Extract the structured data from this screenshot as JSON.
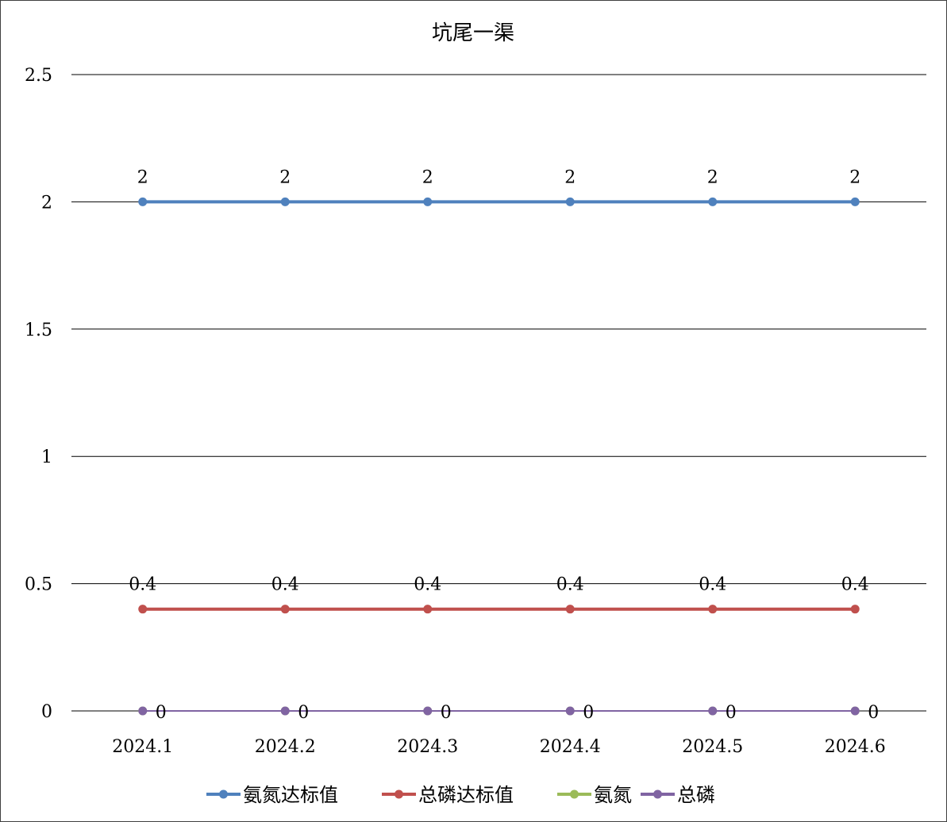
{
  "chart_data": {
    "type": "line",
    "title": "坑尾一渠",
    "categories": [
      "2024.1",
      "2024.2",
      "2024.3",
      "2024.4",
      "2024.5",
      "2024.6"
    ],
    "y_tick_labels": [
      "0",
      "0.5",
      "1",
      "1.5",
      "2",
      "2.5"
    ],
    "ylim": [
      0,
      2.5
    ],
    "grid": true,
    "legend_position": "bottom",
    "series": [
      {
        "name": "氨氮达标值",
        "values": [
          2,
          2,
          2,
          2,
          2,
          2
        ],
        "color": "#4F81BD",
        "data_labels": [
          "2",
          "2",
          "2",
          "2",
          "2",
          "2"
        ]
      },
      {
        "name": "总磷达标值",
        "values": [
          0.4,
          0.4,
          0.4,
          0.4,
          0.4,
          0.4
        ],
        "color": "#C0504D",
        "data_labels": [
          "0.4",
          "0.4",
          "0.4",
          "0.4",
          "0.4",
          "0.4"
        ]
      },
      {
        "name": "氨氮",
        "values": [
          0,
          0,
          0,
          0,
          0,
          0
        ],
        "color": "#9BBB59",
        "data_labels": []
      },
      {
        "name": "总磷",
        "values": [
          0,
          0,
          0,
          0,
          0,
          0
        ],
        "color": "#8064A2",
        "data_labels": [
          "0",
          "0",
          "0",
          "0",
          "0",
          "0"
        ]
      }
    ]
  }
}
